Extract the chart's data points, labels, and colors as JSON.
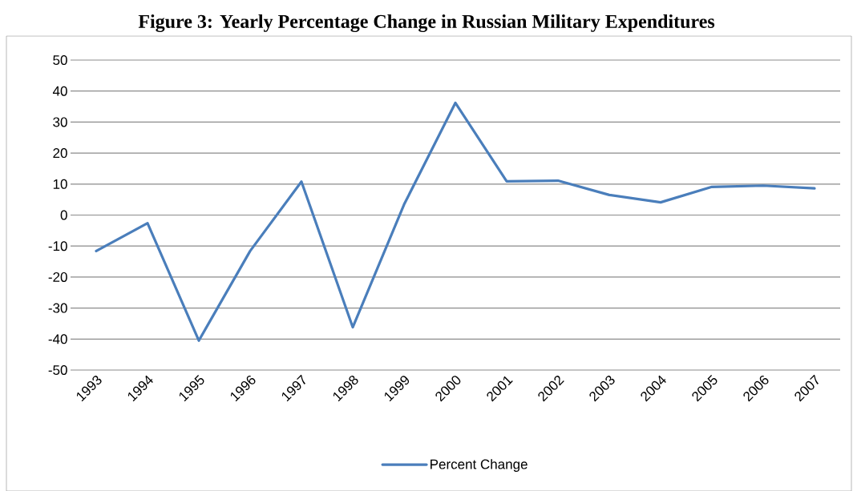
{
  "chart_data": {
    "type": "line",
    "title": "Figure 3: Yearly Percentage Change in Russian Military Expenditures",
    "categories": [
      "1993",
      "1994",
      "1995",
      "1996",
      "1997",
      "1998",
      "1999",
      "2000",
      "2001",
      "2002",
      "2003",
      "2004",
      "2005",
      "2006",
      "2007"
    ],
    "series": [
      {
        "name": "Percent Change",
        "color": "#4a7ebb",
        "values": [
          -11.6,
          -2.6,
          -40.5,
          -11.6,
          10.8,
          -36.2,
          3.4,
          36.2,
          10.9,
          11.1,
          6.5,
          4.1,
          9.1,
          9.5,
          8.6
        ]
      }
    ],
    "ylim": [
      -50,
      50
    ],
    "yticks": [
      -50,
      -40,
      -30,
      -20,
      -10,
      0,
      10,
      20,
      30,
      40,
      50
    ],
    "grid": "y",
    "legend": "bottom"
  }
}
